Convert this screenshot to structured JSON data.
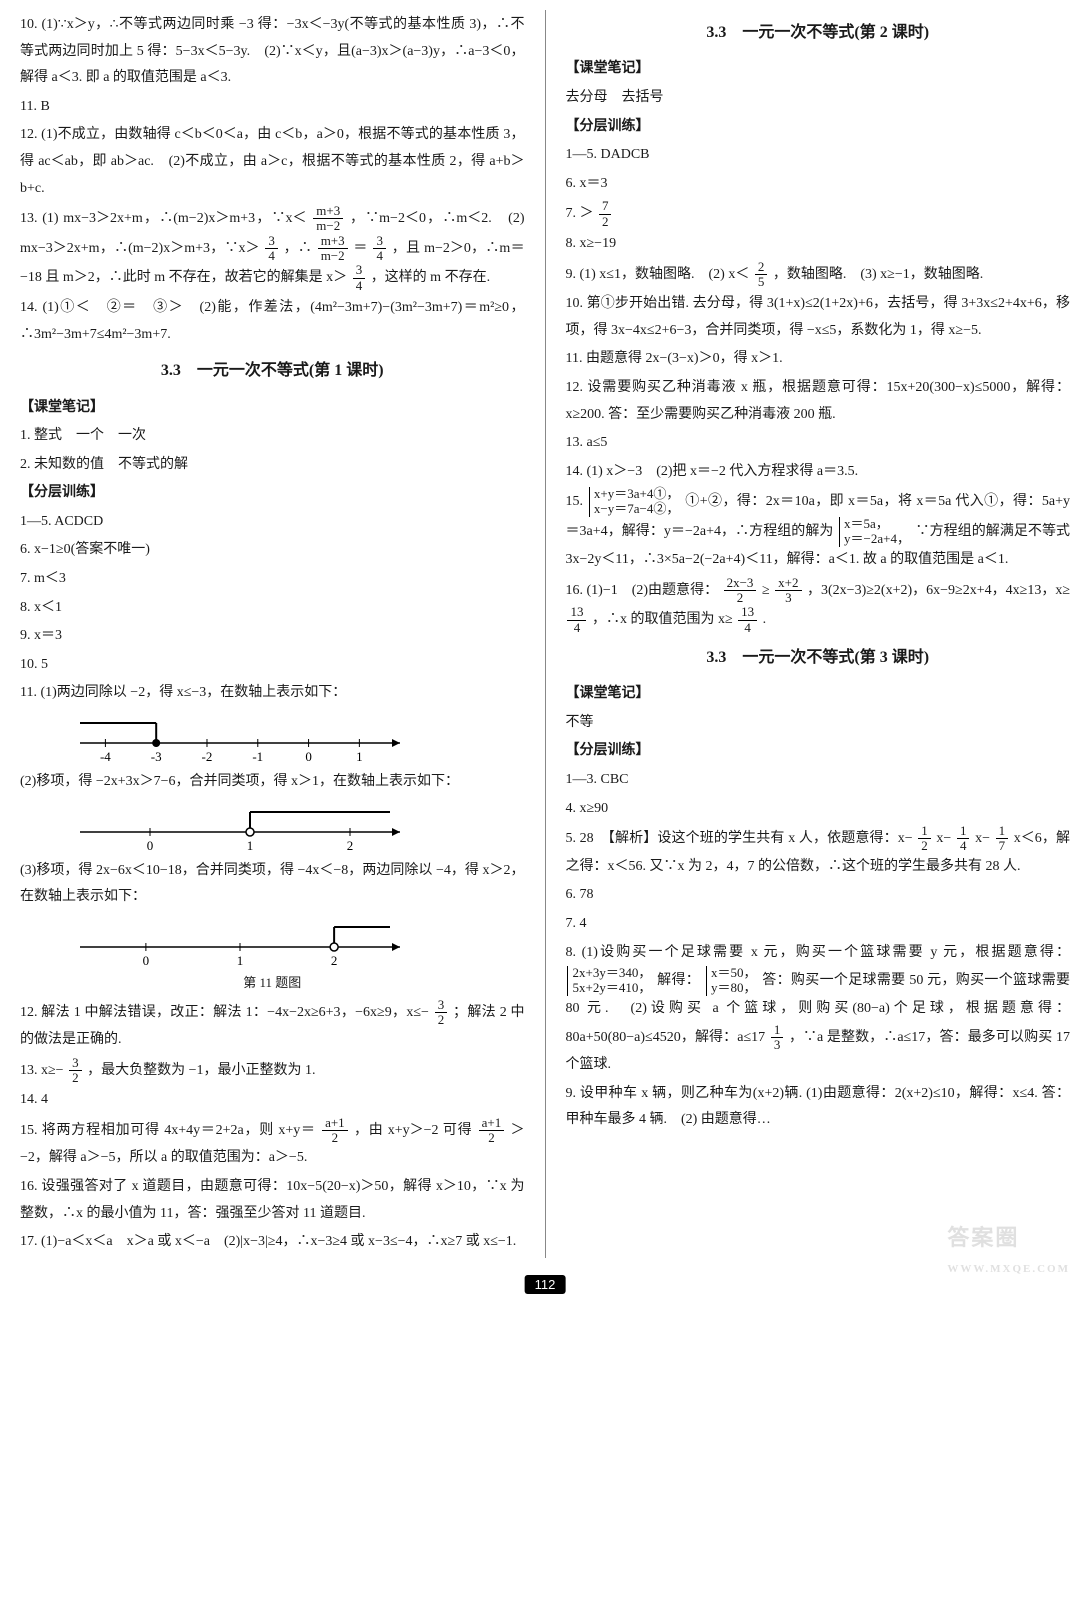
{
  "page_number": "112",
  "watermark": "答案圈",
  "watermark_url": "WWW.MXQE.COM",
  "left": {
    "items": [
      "10. (1)∵x＞y，∴不等式两边同时乘 −3 得：−3x＜−3y(不等式的基本性质 3)，∴不等式两边同时加上 5 得：5−3x＜5−3y.　(2)∵x＜y，且(a−3)x＞(a−3)y，∴a−3＜0，解得 a＜3. 即 a 的取值范围是 a＜3.",
      "11. B",
      "12. (1)不成立，由数轴得 c＜b＜0＜a，由 c＜b，a＞0，根据不等式的基本性质 3，得 ac＜ab，即 ab＞ac.　(2)不成立，由 a＞c，根据不等式的基本性质 2，得 a+b＞b+c."
    ],
    "item13_1": "13. (1) mx−3＞2x+m，∴(m−2)x＞m+3，∵x＜",
    "item13_frac1": {
      "num": "m+3",
      "den": "m−2"
    },
    "item13_2": "，∵m−2＜0，∴m＜2.　(2) mx−3＞2x+m，∴(m−2)x＞m+3，∵x＞",
    "item13_frac2": {
      "num": "3",
      "den": "4"
    },
    "item13_3": "，∴",
    "item13_frac3": {
      "num": "m+3",
      "den": "m−2"
    },
    "item13_4": "＝",
    "item13_frac4": {
      "num": "3",
      "den": "4"
    },
    "item13_5": "，且 m−2＞0，∴m＝−18 且 m＞2，∴此时 m 不存在，故若它的解集是 x＞",
    "item13_frac5": {
      "num": "3",
      "den": "4"
    },
    "item13_6": "，这样的 m 不存在.",
    "item14": "14. (1)①＜　②＝　③＞　(2)能，作差法，(4m²−3m+7)−(3m²−3m+7)＝m²≥0，∴3m²−3m+7≤4m²−3m+7.",
    "sec1_title": "3.3　一元一次不等式(第 1 课时)",
    "sec1_notes_head": "【课堂笔记】",
    "sec1_notes": [
      "1. 整式　一个　一次",
      "2. 未知数的值　不等式的解"
    ],
    "sec1_train_head": "【分层训练】",
    "sec1_train": [
      "1—5. ACDCD",
      "6. x−1≥0(答案不唯一)",
      "7. m＜3",
      "8. x＜1",
      "9. x＝3",
      "10. 5"
    ],
    "sec1_11_1": "11. (1)两边同除以 −2，得 x≤−3，在数轴上表示如下：",
    "numline1": {
      "xmin": -4.5,
      "xmax": 1.8,
      "ticks": [
        -4,
        -3,
        -2,
        -1,
        0,
        1
      ],
      "fill_to": -3,
      "fill_dir": "left",
      "closed": true
    },
    "sec1_11_2": "(2)移项，得 −2x+3x＞7−6，合并同类项，得 x＞1，在数轴上表示如下：",
    "numline2": {
      "xmin": -0.7,
      "xmax": 2.5,
      "ticks": [
        0,
        1,
        2
      ],
      "fill_to": 1,
      "fill_dir": "right",
      "closed": false
    },
    "sec1_11_3": "(3)移项，得 2x−6x＜10−18，合并同类项，得 −4x＜−8，两边同除以 −4，得 x＞2，在数轴上表示如下：",
    "numline3": {
      "xmin": -0.7,
      "xmax": 2.7,
      "ticks": [
        0,
        1,
        2
      ],
      "fill_to": 2,
      "fill_dir": "right",
      "closed": false
    },
    "figcap": "第 11 题图",
    "sec1_12_1": "12. 解法 1 中解法错误，改正：解法 1：−4x−2x≥6+3，−6x≥9，x≤−",
    "sec1_12_frac": {
      "num": "3",
      "den": "2"
    },
    "sec1_12_2": "；解法 2 中的做法是正确的.",
    "sec1_13_1": "13. x≥−",
    "sec1_13_frac": {
      "num": "3",
      "den": "2"
    },
    "sec1_13_2": "，最大负整数为 −1，最小正整数为 1.",
    "sec1_14": "14. 4",
    "sec1_15_1": "15. 将两方程相加可得 4x+4y＝2+2a，则 x+y＝",
    "sec1_15_frac1": {
      "num": "a+1",
      "den": "2"
    },
    "sec1_15_2": "，由 x+y＞−2 可得",
    "sec1_15_frac2": {
      "num": "a+1",
      "den": "2"
    },
    "sec1_15_3": "＞−2，解得 a＞−5，所以 a 的取值范围为：a＞−5.",
    "sec1_16": "16. 设强强答对了 x 道题目，由题意可得：10x−5(20−x)＞50，解得 x＞10，∵x 为整数，∴x 的最小值为 11，答：强强至少答对 11 道题目.",
    "sec1_17": "17. (1)−a＜x＜a　x＞a 或 x＜−a　(2)|x−3|≥4，∴x−3≥4 或 x−3≤−4，∴x≥7 或 x≤−1."
  },
  "right": {
    "sec2_title": "3.3　一元一次不等式(第 2 课时)",
    "sec2_notes_head": "【课堂笔记】",
    "sec2_notes": "去分母　去括号",
    "sec2_train_head": "【分层训练】",
    "sec2_train": [
      "1—5. DADCB",
      "6. x＝3"
    ],
    "sec2_7_1": "7. ＞",
    "sec2_7_frac": {
      "num": "7",
      "den": "2"
    },
    "sec2_8": "8. x≥−19",
    "sec2_9_1": "9. (1) x≤1，数轴图略.　(2) x＜",
    "sec2_9_frac": {
      "num": "2",
      "den": "5"
    },
    "sec2_9_2": "，数轴图略.　(3) x≥−1，数轴图略.",
    "sec2_10": "10. 第①步开始出错. 去分母，得 3(1+x)≤2(1+2x)+6，去括号，得 3+3x≤2+4x+6，移项，得 3x−4x≤2+6−3，合并同类项，得 −x≤5，系数化为 1，得 x≥−5.",
    "sec2_11": "11. 由题意得 2x−(3−x)＞0，得 x＞1.",
    "sec2_12": "12. 设需要购买乙种消毒液 x 瓶，根据题意可得：15x+20(300−x)≤5000，解得：x≥200. 答：至少需要购买乙种消毒液 200 瓶.",
    "sec2_13": "13. a≤5",
    "sec2_14": "14. (1) x＞−3　(2)把 x＝−2 代入方程求得 a＝3.5.",
    "sec2_15_1": "15. ",
    "sec2_15_brace1": [
      "x+y＝3a+4①，",
      "x−y＝7a−4②，"
    ],
    "sec2_15_2": "①+②，得：2x＝10a，即 x＝5a，将 x＝5a 代入①，得：5a+y＝3a+4，解得：y＝−2a+4，∴方程组的解为",
    "sec2_15_brace2": [
      "x＝5a，",
      "y＝−2a+4，"
    ],
    "sec2_15_3": "∵方程组的解满足不等式 3x−2y＜11，∴3×5a−2(−2a+4)＜11，解得：a＜1. 故 a 的取值范围是 a＜1.",
    "sec2_16_1": "16. (1)−1　(2)由题意得：",
    "sec2_16_frac1": {
      "num": "2x−3",
      "den": "2"
    },
    "sec2_16_2": "≥",
    "sec2_16_frac2": {
      "num": "x+2",
      "den": "3"
    },
    "sec2_16_3": "，3(2x−3)≥2(x+2)，6x−9≥2x+4，4x≥13，x≥",
    "sec2_16_frac3": {
      "num": "13",
      "den": "4"
    },
    "sec2_16_4": "，∴x 的取值范围为 x≥",
    "sec2_16_frac4": {
      "num": "13",
      "den": "4"
    },
    "sec2_16_5": ".",
    "sec3_title": "3.3　一元一次不等式(第 3 课时)",
    "sec3_notes_head": "【课堂笔记】",
    "sec3_notes": "不等",
    "sec3_train_head": "【分层训练】",
    "sec3_train": [
      "1—3. CBC",
      "4. x≥90"
    ],
    "sec3_5_1": "5. 28　【解析】设这个班的学生共有 x 人，依题意得：x−",
    "sec3_5_frac1": {
      "num": "1",
      "den": "2"
    },
    "sec3_5_2": "x−",
    "sec3_5_frac2": {
      "num": "1",
      "den": "4"
    },
    "sec3_5_3": "x−",
    "sec3_5_frac3": {
      "num": "1",
      "den": "7"
    },
    "sec3_5_4": "x＜6，解之得：x＜56. 又∵x 为 2，4，7 的公倍数，∴这个班的学生最多共有 28 人.",
    "sec3_6": "6. 78",
    "sec3_7": "7. 4",
    "sec3_8_1": "8. (1)设购买一个足球需要 x 元，购买一个篮球需要 y 元，根据题意得：",
    "sec3_8_brace1": [
      "2x+3y＝340，",
      "5x+2y＝410，"
    ],
    "sec3_8_2": "解得：",
    "sec3_8_brace2": [
      "x＝50，",
      "y＝80，"
    ],
    "sec3_8_3": "答：购买一个足球需要 50 元，购买一个篮球需要 80 元.　(2)设购买 a 个篮球，则购买(80−a)个足球，根据题意得：80a+50(80−a)≤4520，解得：a≤17",
    "sec3_8_frac": {
      "num": "1",
      "den": "3"
    },
    "sec3_8_4": "，∵a 是整数，∴a≤17，答：最多可以购买 17 个篮球.",
    "sec3_9": "9. 设甲种车 x 辆，则乙种车为(x+2)辆. (1)由题意得：2(x+2)≤10，解得：x≤4. 答：甲种车最多 4 辆.　(2) 由题意得…"
  }
}
